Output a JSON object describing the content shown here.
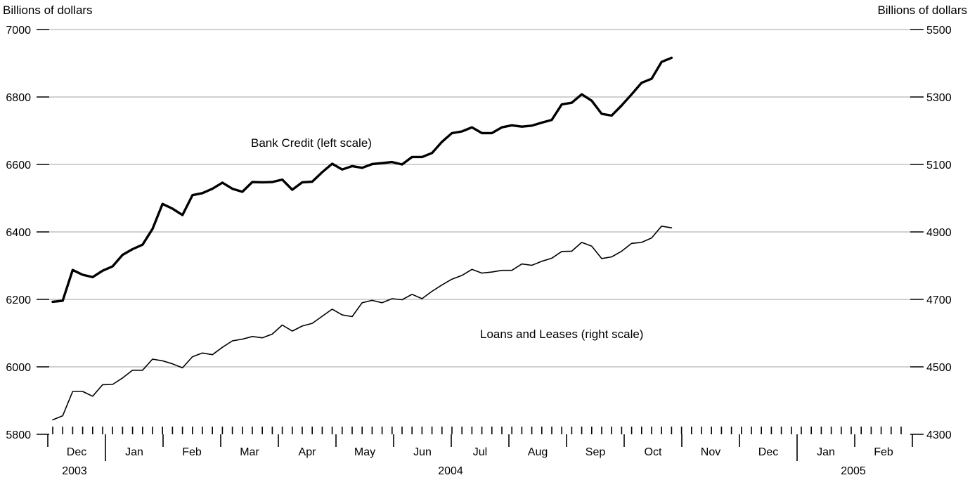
{
  "chart_data": {
    "type": "line",
    "y_left_label": "Billions of dollars",
    "y_right_label": "Billions of dollars",
    "y_left_range": [
      5800,
      7000
    ],
    "y_right_range": [
      4300,
      5500
    ],
    "y_left_ticks": [
      "7000",
      "6800",
      "6600",
      "6400",
      "6200",
      "6000",
      "5800"
    ],
    "y_right_ticks": [
      "5500",
      "5300",
      "5100",
      "4900",
      "4700",
      "4500",
      "4300"
    ],
    "grid": "horizontal",
    "months": [
      "Dec",
      "Jan",
      "Feb",
      "Mar",
      "Apr",
      "May",
      "Jun",
      "Jul",
      "Aug",
      "Sep",
      "Oct",
      "Nov",
      "Dec",
      "Jan",
      "Feb"
    ],
    "years": [
      "2003",
      "2004",
      "2005"
    ],
    "series": [
      {
        "name": "Bank Credit (left scale)",
        "axis": "left",
        "color": "#000000",
        "values": [
          6193,
          6196,
          6287,
          6273,
          6266,
          6285,
          6298,
          6332,
          6349,
          6362,
          6409,
          6483,
          6469,
          6450,
          6509,
          6515,
          6528,
          6546,
          6528,
          6519,
          6548,
          6547,
          6548,
          6555,
          6525,
          6547,
          6549,
          6577,
          6602,
          6585,
          6595,
          6590,
          6601,
          6604,
          6607,
          6600,
          6622,
          6622,
          6634,
          6667,
          6693,
          6698,
          6710,
          6693,
          6693,
          6710,
          6716,
          6712,
          6715,
          6724,
          6732,
          6778,
          6783,
          6808,
          6789,
          6750,
          6745,
          6775,
          6808,
          6842,
          6854,
          6904,
          6916
        ]
      },
      {
        "name": "Loans and Leases (right scale)",
        "axis": "right",
        "color": "#000000",
        "values": [
          4343,
          4355,
          4427,
          4427,
          4413,
          4447,
          4448,
          4467,
          4490,
          4490,
          4523,
          4518,
          4509,
          4497,
          4530,
          4541,
          4536,
          4558,
          4577,
          4582,
          4590,
          4586,
          4597,
          4624,
          4606,
          4621,
          4629,
          4650,
          4671,
          4654,
          4649,
          4690,
          4697,
          4690,
          4702,
          4699,
          4715,
          4702,
          4724,
          4743,
          4760,
          4771,
          4789,
          4778,
          4781,
          4786,
          4786,
          4805,
          4801,
          4813,
          4822,
          4842,
          4843,
          4869,
          4858,
          4821,
          4826,
          4843,
          4866,
          4869,
          4882,
          4917,
          4912
        ]
      }
    ]
  }
}
